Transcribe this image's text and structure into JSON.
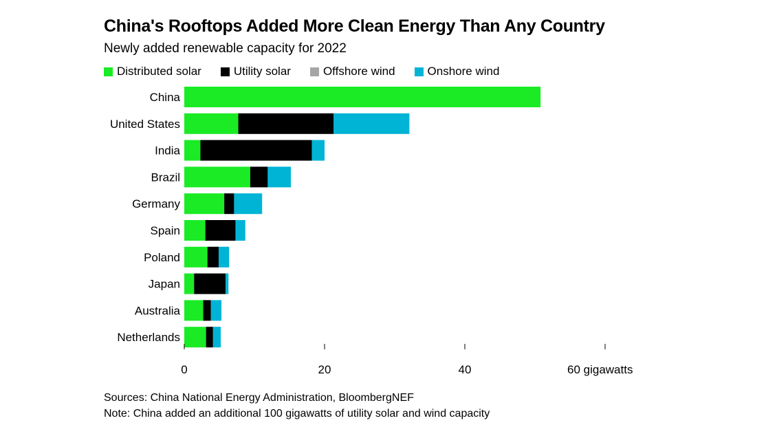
{
  "title": "China's Rooftops Added More Clean Energy Than Any Country",
  "subtitle": "Newly added renewable capacity for 2022",
  "legend": [
    {
      "name": "Distributed solar",
      "color": "#1aeb25"
    },
    {
      "name": "Utility solar",
      "color": "#000000"
    },
    {
      "name": "Offshore wind",
      "color": "#a6a6a6"
    },
    {
      "name": "Onshore wind",
      "color": "#00b4d6"
    }
  ],
  "chart_data": {
    "type": "bar",
    "orientation": "horizontal",
    "stacked": true,
    "categories": [
      "China",
      "United States",
      "India",
      "Brazil",
      "Germany",
      "Spain",
      "Poland",
      "Japan",
      "Australia",
      "Netherlands"
    ],
    "series": [
      {
        "name": "Distributed solar",
        "color": "#1aeb25",
        "values": [
          50.8,
          7.7,
          2.3,
          9.4,
          5.7,
          3.0,
          3.3,
          1.4,
          2.7,
          3.1
        ]
      },
      {
        "name": "Utility solar",
        "color": "#000000",
        "values": [
          0,
          13.6,
          15.9,
          2.5,
          1.4,
          4.3,
          1.6,
          4.5,
          1.1,
          1.0
        ]
      },
      {
        "name": "Offshore wind",
        "color": "#a6a6a6",
        "values": [
          0,
          0,
          0,
          0,
          0,
          0,
          0,
          0,
          0,
          0
        ]
      },
      {
        "name": "Onshore wind",
        "color": "#00b4d6",
        "values": [
          0,
          10.8,
          1.8,
          3.3,
          4.0,
          1.4,
          1.5,
          0.4,
          1.5,
          1.1
        ]
      }
    ],
    "xticks": [
      0,
      20,
      40,
      60
    ],
    "xtick_labels": [
      "0",
      "20",
      "40",
      "60 gigawatts"
    ],
    "xlim": [
      0,
      60
    ],
    "grid": false,
    "legend_position": "top"
  },
  "footer": {
    "sources": "Sources: China National Energy Administration, BloombergNEF",
    "note": "Note: China added an additional 100 gigawatts of utility solar and wind capacity"
  }
}
